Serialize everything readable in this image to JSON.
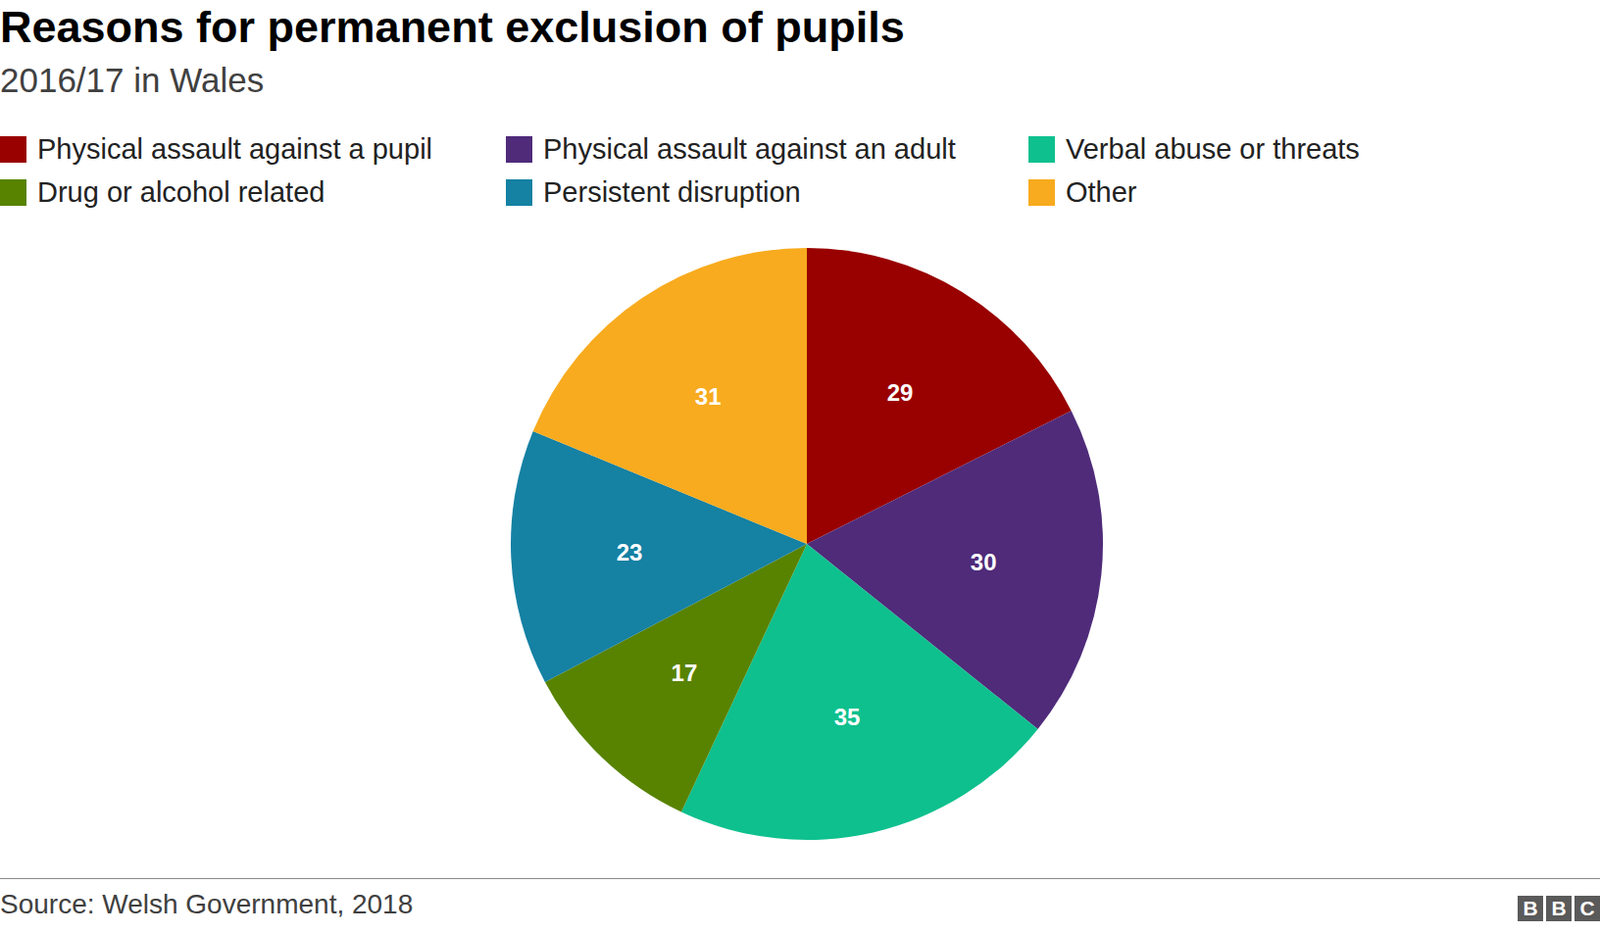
{
  "chart_data": {
    "type": "pie",
    "title": "Reasons for permanent exclusion of pupils",
    "subtitle": "2016/17 in Wales",
    "categories": [
      "Physical assault against a pupil",
      "Physical assault against an adult",
      "Verbal abuse or threats",
      "Drug or alcohol related",
      "Persistent disruption",
      "Other"
    ],
    "values": [
      29,
      30,
      35,
      17,
      23,
      31
    ],
    "colors": [
      "#990000",
      "#4f2b7a",
      "#0ec08e",
      "#588300",
      "#1581a3",
      "#f8ab1e"
    ],
    "data_labels": true,
    "legend": "top",
    "source": "Source: Welsh Government, 2018",
    "logo": "BBC"
  }
}
